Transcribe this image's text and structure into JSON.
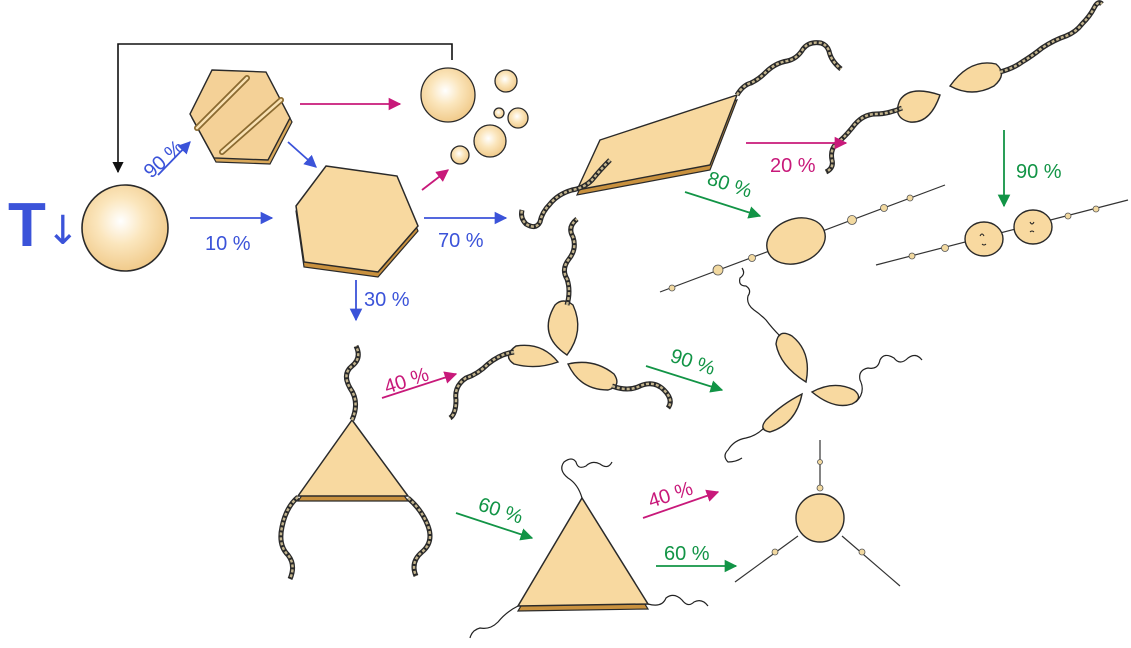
{
  "colors": {
    "blue": "#3b53d9",
    "magenta": "#c8197a",
    "green": "#129446",
    "black": "#111111",
    "particle_fill": "#f8d9a0",
    "particle_edge": "#c99a4a",
    "chain_fill": "#c4b58e"
  },
  "temperature_symbol": {
    "letter": "T",
    "arrow": "↓"
  },
  "labels": {
    "hex_sliced_pct": "90 %",
    "hex_pct": "10 %",
    "rhombus_pct": "70 %",
    "triangle_pct": "30 %",
    "dimer_pct": "20 %",
    "rhombus_to_rods_pct": "80 %",
    "dimer_split_pct": "90 %",
    "tripod_pct": "40 %",
    "tripod_coil_pct": "90 %",
    "tri_coil_pct": "60 %",
    "tri_to_tripod_pct": "40 %",
    "tri_to_disk_pct": "60 %"
  }
}
